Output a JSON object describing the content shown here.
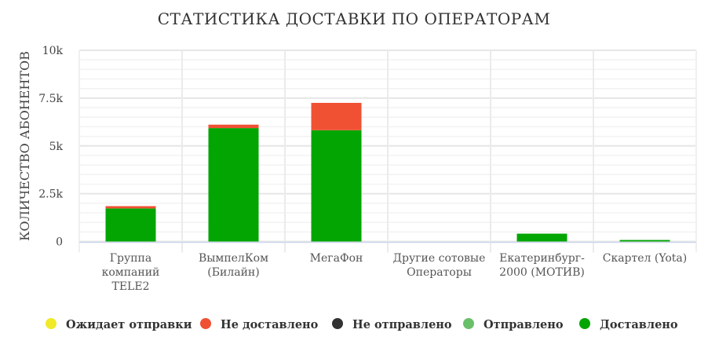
{
  "chart_data": {
    "type": "bar",
    "stacked": true,
    "title": "СТАТИСТИКА ДОСТАВКИ ПО ОПЕРАТОРАМ",
    "xlabel": "",
    "ylabel": "КОЛИЧЕСТВО АБОНЕНТОВ",
    "ylim": [
      0,
      10000
    ],
    "yticks": [
      0,
      2500,
      5000,
      7500,
      10000
    ],
    "ytick_labels": [
      "0",
      "2.5k",
      "5k",
      "7.5k",
      "10k"
    ],
    "grid": true,
    "legend_position": "bottom",
    "categories": [
      [
        "Группа",
        "компаний",
        "TELE2"
      ],
      [
        "ВымпелКом",
        "(Билайн)"
      ],
      [
        "МегаФон"
      ],
      [
        "Другие сотовые",
        "Операторы"
      ],
      [
        "Екатеринбург-",
        "2000 (МОТИВ)"
      ],
      [
        "Скартел (Yota)"
      ]
    ],
    "series": [
      {
        "name": "Ожидает отправки",
        "color": "#f0ea28",
        "values": [
          0,
          0,
          0,
          0,
          0,
          0
        ]
      },
      {
        "name": "Не доставлено",
        "color": "#f05133",
        "values": [
          120,
          180,
          1430,
          0,
          0,
          0
        ]
      },
      {
        "name": "Не отправлено",
        "color": "#333333",
        "values": [
          0,
          0,
          0,
          0,
          0,
          0
        ]
      },
      {
        "name": "Отправлено",
        "color": "#6abf69",
        "values": [
          0,
          0,
          0,
          0,
          0,
          0
        ]
      },
      {
        "name": "Доставлено",
        "color": "#03a503",
        "values": [
          1730,
          5930,
          5820,
          0,
          410,
          80
        ]
      }
    ]
  }
}
